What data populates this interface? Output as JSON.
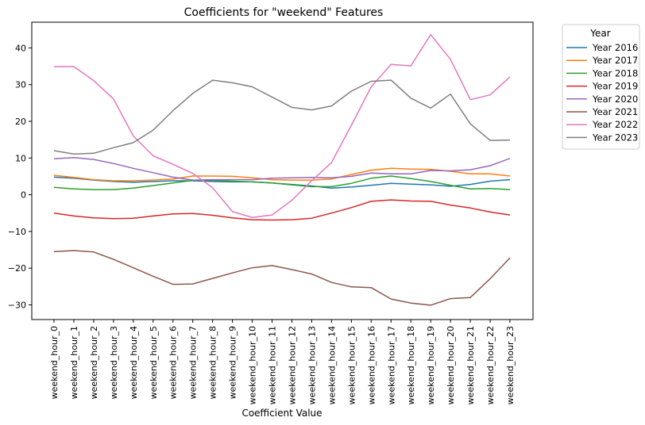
{
  "chart_data": {
    "type": "line",
    "title": "Coefficients for \"weekend\" Features",
    "xlabel": "Coefficient Value",
    "ylabel": "",
    "ylim": [
      -34,
      47
    ],
    "yticks": [
      -30,
      -20,
      -10,
      0,
      10,
      20,
      30,
      40
    ],
    "grid": false,
    "legend": {
      "title": "Year",
      "placement": "outside-top-right"
    },
    "categories": [
      "weekend_hour_0",
      "weekend_hour_1",
      "weekend_hour_2",
      "weekend_hour_3",
      "weekend_hour_4",
      "weekend_hour_5",
      "weekend_hour_6",
      "weekend_hour_7",
      "weekend_hour_8",
      "weekend_hour_9",
      "weekend_hour_10",
      "weekend_hour_11",
      "weekend_hour_12",
      "weekend_hour_13",
      "weekend_hour_14",
      "weekend_hour_15",
      "weekend_hour_16",
      "weekend_hour_17",
      "weekend_hour_18",
      "weekend_hour_19",
      "weekend_hour_20",
      "weekend_hour_21",
      "weekend_hour_22",
      "weekend_hour_23"
    ],
    "series": [
      {
        "name": "Year 2016",
        "color": "#1f77b4",
        "values": [
          4.8,
          4.5,
          4.0,
          3.6,
          3.4,
          3.6,
          3.8,
          3.8,
          3.6,
          3.5,
          3.5,
          3.2,
          2.8,
          2.4,
          1.8,
          2.1,
          2.6,
          3.1,
          2.9,
          2.7,
          2.3,
          2.8,
          3.7,
          4.1
        ]
      },
      {
        "name": "Year 2017",
        "color": "#ff7f0e",
        "values": [
          5.3,
          4.7,
          4.1,
          3.8,
          3.8,
          4.0,
          4.3,
          5.1,
          5.1,
          5.0,
          4.6,
          4.1,
          4.0,
          4.0,
          4.3,
          5.5,
          6.7,
          7.2,
          7.0,
          6.9,
          6.4,
          5.7,
          5.7,
          5.1
        ]
      },
      {
        "name": "Year 2018",
        "color": "#2ca02c",
        "values": [
          2.0,
          1.6,
          1.4,
          1.4,
          1.8,
          2.5,
          3.2,
          3.9,
          3.9,
          3.7,
          3.5,
          3.2,
          2.7,
          2.2,
          2.2,
          3.1,
          4.5,
          5.1,
          4.4,
          3.6,
          2.6,
          1.6,
          1.7,
          1.4
        ]
      },
      {
        "name": "Year 2019",
        "color": "#d62728",
        "values": [
          -5.0,
          -5.8,
          -6.3,
          -6.5,
          -6.4,
          -5.8,
          -5.2,
          -5.1,
          -5.6,
          -6.3,
          -6.8,
          -6.9,
          -6.8,
          -6.4,
          -5.0,
          -3.5,
          -1.8,
          -1.4,
          -1.7,
          -1.8,
          -2.8,
          -3.6,
          -4.7,
          -5.5
        ]
      },
      {
        "name": "Year 2020",
        "color": "#9467bd",
        "values": [
          9.8,
          10.1,
          9.6,
          8.5,
          7.2,
          6.0,
          4.8,
          4.0,
          4.1,
          4.1,
          4.1,
          4.5,
          4.6,
          4.7,
          4.6,
          5.0,
          5.9,
          5.7,
          5.7,
          6.6,
          6.5,
          6.8,
          7.9,
          9.9
        ]
      },
      {
        "name": "Year 2021",
        "color": "#8c564b",
        "values": [
          -15.5,
          -15.2,
          -15.6,
          -17.6,
          -19.9,
          -22.2,
          -24.4,
          -24.3,
          -22.8,
          -21.3,
          -19.9,
          -19.3,
          -20.4,
          -21.6,
          -23.9,
          -25.1,
          -25.3,
          -28.4,
          -29.5,
          -30.1,
          -28.3,
          -28.0,
          -22.9,
          -17.2
        ]
      },
      {
        "name": "Year 2022",
        "color": "#e377c2",
        "values": [
          34.9,
          34.9,
          31.1,
          26.1,
          16.0,
          10.6,
          8.3,
          5.8,
          1.9,
          -4.6,
          -6.2,
          -5.5,
          -1.5,
          3.8,
          8.8,
          18.9,
          29.4,
          35.5,
          35.1,
          43.6,
          36.9,
          25.9,
          27.2,
          32.1
        ]
      },
      {
        "name": "Year 2023",
        "color": "#7f7f7f",
        "values": [
          12.0,
          11.1,
          11.3,
          12.8,
          14.2,
          17.6,
          22.9,
          27.6,
          31.2,
          30.5,
          29.4,
          26.6,
          23.8,
          23.1,
          24.2,
          28.2,
          30.9,
          31.2,
          26.3,
          23.6,
          27.4,
          19.3,
          14.8,
          14.9
        ]
      }
    ]
  }
}
